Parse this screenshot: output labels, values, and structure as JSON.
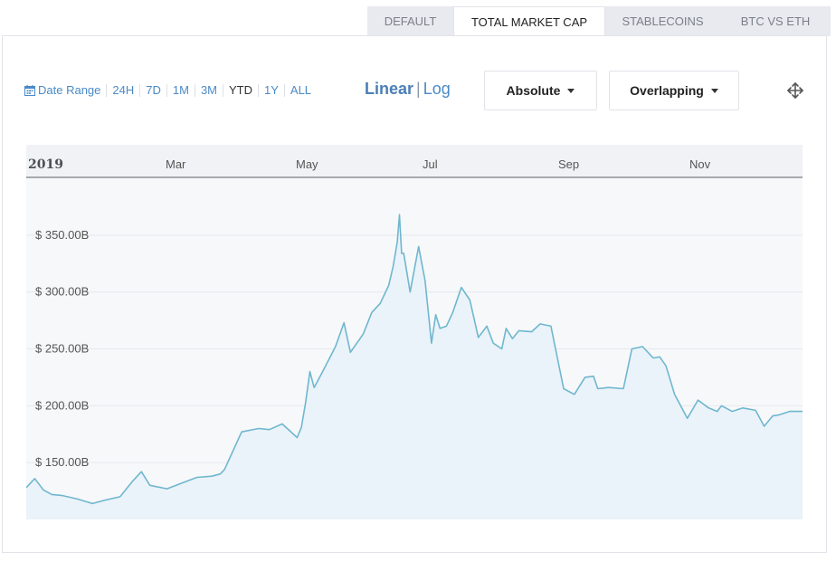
{
  "tabs": [
    {
      "label": "DEFAULT",
      "active": false
    },
    {
      "label": "TOTAL MARKET CAP",
      "active": true
    },
    {
      "label": "STABLECOINS",
      "active": false
    },
    {
      "label": "BTC VS ETH",
      "active": false
    }
  ],
  "toolbar": {
    "date_range_label": "Date Range",
    "ranges": [
      "24H",
      "7D",
      "1M",
      "3M",
      "YTD",
      "1Y",
      "ALL"
    ],
    "scale_linear": "Linear",
    "scale_divider": "|",
    "scale_log": "Log",
    "mode_dropdown": "Absolute",
    "overlap_dropdown": "Overlapping",
    "icons": {
      "calendar": "calendar-icon",
      "move": "move-arrows-icon",
      "caret": "caret-down-icon"
    }
  },
  "colors": {
    "line": "#6fb7cf",
    "fill": "#eaf3f9",
    "plot_bg": "#f7f8fa",
    "axis_bar": "#f1f2f5",
    "accent": "#4a8ac6"
  },
  "chart_data": {
    "type": "area",
    "x_axis_labels": [
      "2019",
      "Mar",
      "May",
      "Jul",
      "Sep",
      "Nov"
    ],
    "y_tick_labels": [
      "$ 150.00B",
      "$ 200.00B",
      "$ 250.00B",
      "$ 300.00B",
      "$ 350.00B"
    ],
    "y_ticks": [
      150,
      200,
      250,
      300,
      350
    ],
    "ylim": [
      100,
      400
    ],
    "xlim": [
      "2019-01-01",
      "2019-12-31"
    ],
    "grid": true,
    "series": [
      {
        "x": [
          "2019-01-01",
          "2019-01-05",
          "2019-01-09",
          "2019-01-13",
          "2019-01-18",
          "2019-01-25",
          "2019-02-01",
          "2019-02-07",
          "2019-02-14",
          "2019-02-20",
          "2019-02-24",
          "2019-02-28",
          "2019-03-08",
          "2019-03-15",
          "2019-03-22",
          "2019-03-29",
          "2019-04-02",
          "2019-04-04",
          "2019-04-12",
          "2019-04-20",
          "2019-04-25",
          "2019-05-01",
          "2019-05-08",
          "2019-05-10",
          "2019-05-12",
          "2019-05-14",
          "2019-05-16",
          "2019-05-20",
          "2019-05-26",
          "2019-05-30",
          "2019-06-02",
          "2019-06-08",
          "2019-06-12",
          "2019-06-16",
          "2019-06-20",
          "2019-06-22",
          "2019-06-24",
          "2019-06-25",
          "2019-06-26",
          "2019-06-27",
          "2019-06-30",
          "2019-07-02",
          "2019-07-04",
          "2019-07-07",
          "2019-07-10",
          "2019-07-12",
          "2019-07-14",
          "2019-07-17",
          "2019-07-20",
          "2019-07-24",
          "2019-07-28",
          "2019-08-01",
          "2019-08-05",
          "2019-08-08",
          "2019-08-12",
          "2019-08-14",
          "2019-08-17",
          "2019-08-20",
          "2019-08-26",
          "2019-08-30",
          "2019-09-04",
          "2019-09-10",
          "2019-09-15",
          "2019-09-20",
          "2019-09-24",
          "2019-09-26",
          "2019-10-01",
          "2019-10-08",
          "2019-10-12",
          "2019-10-17",
          "2019-10-22",
          "2019-10-25",
          "2019-10-28",
          "2019-11-01",
          "2019-11-07",
          "2019-11-12",
          "2019-11-17",
          "2019-11-21",
          "2019-11-23",
          "2019-11-28",
          "2019-12-03",
          "2019-12-09",
          "2019-12-13",
          "2019-12-17",
          "2019-12-20",
          "2019-12-25",
          "2019-12-31"
        ],
        "y": [
          128,
          136,
          126,
          122,
          121,
          118,
          114,
          117,
          120,
          134,
          142,
          130,
          127,
          132,
          137,
          138,
          140,
          144,
          177,
          180,
          179,
          184,
          172,
          181,
          203,
          230,
          216,
          230,
          252,
          273,
          247,
          263,
          282,
          290,
          306,
          322,
          344,
          368,
          334,
          334,
          300,
          320,
          340,
          310,
          255,
          280,
          268,
          270,
          282,
          304,
          293,
          260,
          270,
          255,
          250,
          268,
          259,
          266,
          265,
          272,
          270,
          215,
          210,
          225,
          226,
          215,
          216,
          215,
          250,
          252,
          242,
          243,
          235,
          210,
          189,
          205,
          198,
          195,
          200,
          195,
          198,
          196,
          182,
          191,
          192,
          195,
          195
        ]
      }
    ]
  }
}
